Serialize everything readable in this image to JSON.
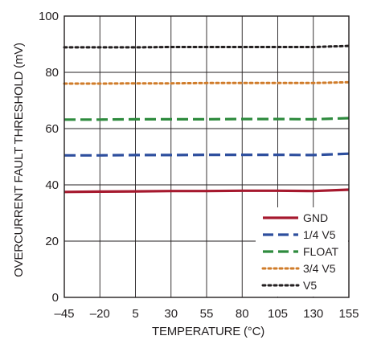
{
  "chart_data": {
    "type": "line",
    "title": "",
    "xlabel": "TEMPERATURE (°C)",
    "ylabel": "OVERCURRENT FAULT THRESHOLD (mV)",
    "xlim": [
      -45,
      155
    ],
    "ylim": [
      0,
      100
    ],
    "x_ticks": [
      -45,
      -20,
      5,
      30,
      55,
      80,
      105,
      130,
      155
    ],
    "x_tick_labels": [
      "–45",
      "–20",
      "5",
      "30",
      "55",
      "80",
      "105",
      "130",
      "155"
    ],
    "y_ticks": [
      0,
      20,
      40,
      60,
      80,
      100
    ],
    "y_tick_labels": [
      "0",
      "20",
      "40",
      "60",
      "80",
      "100"
    ],
    "grid": true,
    "legend_position": "bottom-right",
    "x": [
      -45,
      -20,
      5,
      30,
      55,
      80,
      105,
      130,
      155
    ],
    "series": [
      {
        "name": "GND",
        "color": "#a6192e",
        "style": "solid",
        "values": [
          37.5,
          37.6,
          37.7,
          37.8,
          37.8,
          37.9,
          37.9,
          37.8,
          38.3
        ]
      },
      {
        "name": "1/4 V5",
        "color": "#2e4f9e",
        "style": "dashed",
        "values": [
          50.5,
          50.5,
          50.6,
          50.6,
          50.7,
          50.7,
          50.7,
          50.6,
          51.1
        ]
      },
      {
        "name": "FLOAT",
        "color": "#2e8b3e",
        "style": "dashed",
        "values": [
          63.2,
          63.2,
          63.3,
          63.3,
          63.3,
          63.4,
          63.4,
          63.3,
          63.7
        ]
      },
      {
        "name": "3/4 V5",
        "color": "#d07c2a",
        "style": "dotted",
        "values": [
          76.0,
          76.0,
          76.1,
          76.1,
          76.2,
          76.2,
          76.2,
          76.2,
          76.5
        ]
      },
      {
        "name": "V5",
        "color": "#231f20",
        "style": "dotted",
        "values": [
          88.9,
          88.9,
          88.9,
          89.0,
          89.0,
          89.0,
          89.0,
          89.0,
          89.4
        ]
      }
    ]
  }
}
